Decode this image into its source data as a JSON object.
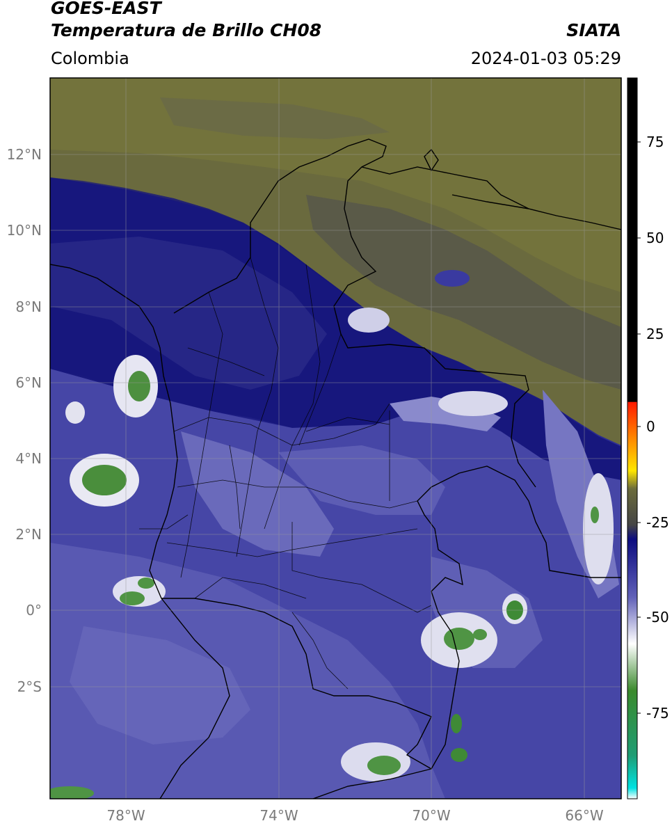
{
  "header": {
    "satellite": "GOES-EAST",
    "product": "Temperatura de Brillo CH08",
    "region": "Colombia",
    "brand": "SIATA",
    "datetime": "2024-01-03 05:29"
  },
  "map": {
    "lat_labels": [
      "12°N",
      "10°N",
      "8°N",
      "6°N",
      "4°N",
      "2°N",
      "0°",
      "2°S"
    ],
    "lon_labels": [
      "78°W",
      "74°W",
      "70°W",
      "66°W"
    ],
    "colors": {
      "warm_dry": "#6e6e3c",
      "grey_band": "#4d4d4d",
      "deep_blue": "#16167e",
      "mid_blue": "#3c3ca2",
      "light_blue": "#7a7ac4",
      "white": "#f2f2f8",
      "green": "#4d8f3f",
      "border": "#000000",
      "grid": "#9a9a9a"
    }
  },
  "colorbar": {
    "ticks": [
      "75",
      "50",
      "25",
      "0",
      "-25",
      "-50",
      "-75"
    ],
    "units": "",
    "colors": [
      "#ffffff",
      "#00e5e5",
      "#1f9d74",
      "#3a8a2c",
      "#ffffff",
      "#3a3aa0",
      "#0c0c80",
      "#494949",
      "#6b6b3b",
      "#ffe600",
      "#ff8800",
      "#ff2200",
      "#000000"
    ]
  }
}
